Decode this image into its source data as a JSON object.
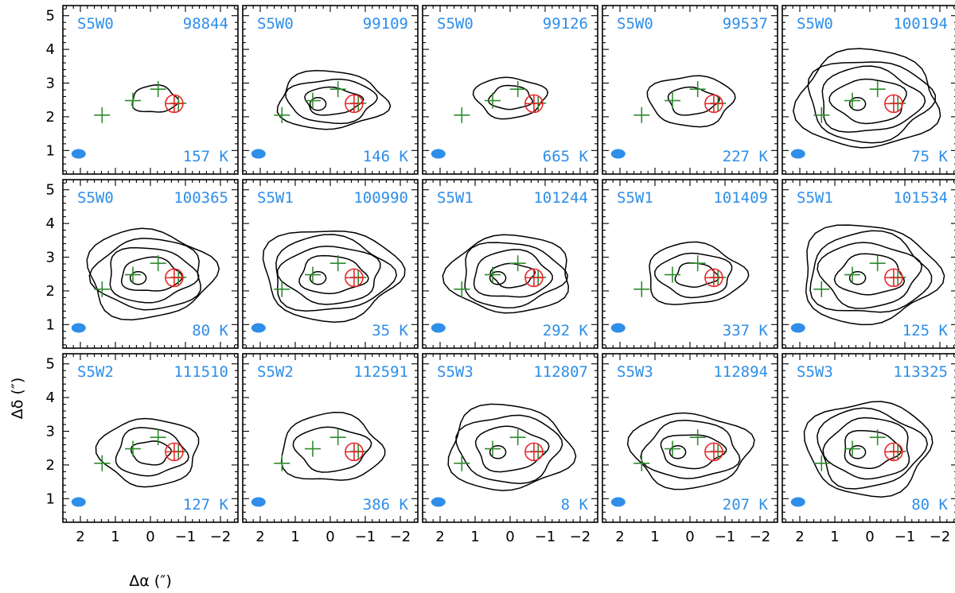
{
  "chart_data": {
    "type": "contour-map-grid",
    "rows": 3,
    "cols": 5,
    "xlabel": "Δα (″)",
    "ylabel": "Δδ (″)",
    "xlim": [
      2.5,
      -2.5
    ],
    "ylim": [
      0.3,
      5.3
    ],
    "xticks": [
      2,
      1,
      0,
      -1,
      -2
    ],
    "xtick_labels": [
      "2",
      "1",
      "0",
      "−1",
      "−2"
    ],
    "yticks": [
      1,
      2,
      3,
      4,
      5
    ],
    "ytick_labels": [
      "1",
      "2",
      "3",
      "4",
      "5"
    ],
    "green_crosses": [
      [
        1.38,
        2.05
      ],
      [
        0.5,
        2.48
      ],
      [
        -0.22,
        2.82
      ],
      [
        -0.8,
        2.4
      ]
    ],
    "red_target": [
      -0.68,
      2.39
    ],
    "beam_center": [
      2.05,
      0.9
    ],
    "panels": [
      {
        "window": "S5W0",
        "freq": "98844",
        "peak": "157 K"
      },
      {
        "window": "S5W0",
        "freq": "99109",
        "peak": "146 K"
      },
      {
        "window": "S5W0",
        "freq": "99126",
        "peak": "665 K"
      },
      {
        "window": "S5W0",
        "freq": "99537",
        "peak": "227 K"
      },
      {
        "window": "S5W0",
        "freq": "100194",
        "peak": "75 K"
      },
      {
        "window": "S5W0",
        "freq": "100365",
        "peak": "80 K"
      },
      {
        "window": "S5W1",
        "freq": "100990",
        "peak": "35 K"
      },
      {
        "window": "S5W1",
        "freq": "101244",
        "peak": "292 K"
      },
      {
        "window": "S5W1",
        "freq": "101409",
        "peak": "337 K"
      },
      {
        "window": "S5W1",
        "freq": "101534",
        "peak": "125 K"
      },
      {
        "window": "S5W2",
        "freq": "111510",
        "peak": "127 K"
      },
      {
        "window": "S5W2",
        "freq": "112591",
        "peak": "386 K"
      },
      {
        "window": "S5W3",
        "freq": "112807",
        "peak": "8 K"
      },
      {
        "window": "S5W3",
        "freq": "112894",
        "peak": "207 K"
      },
      {
        "window": "S5W3",
        "freq": "113325",
        "peak": "80 K"
      }
    ],
    "contour_extents": [
      {
        "cx": -0.15,
        "cy": 2.5,
        "rx": [
          0.65
        ],
        "ry": [
          0.4
        ],
        "hole": false
      },
      {
        "cx": -0.1,
        "cy": 2.45,
        "rx": [
          1.55,
          1.25,
          0.8
        ],
        "ry": [
          0.85,
          0.65,
          0.4
        ],
        "hole": true
      },
      {
        "cx": -0.05,
        "cy": 2.55,
        "rx": [
          1.0,
          0.6
        ],
        "ry": [
          0.6,
          0.35
        ],
        "hole": false
      },
      {
        "cx": -0.1,
        "cy": 2.45,
        "rx": [
          1.2,
          0.7
        ],
        "ry": [
          0.75,
          0.4
        ],
        "hole": false
      },
      {
        "cx": -0.05,
        "cy": 2.45,
        "rx": [
          2.0,
          1.75,
          1.45,
          1.05
        ],
        "ry": [
          1.45,
          1.2,
          0.95,
          0.65
        ],
        "hole": true
      },
      {
        "cx": -0.05,
        "cy": 2.45,
        "rx": [
          1.8,
          1.55,
          1.25,
          0.85
        ],
        "ry": [
          1.3,
          1.05,
          0.8,
          0.5
        ],
        "hole": true
      },
      {
        "cx": -0.1,
        "cy": 2.45,
        "rx": [
          1.95,
          1.7,
          1.4,
          0.95
        ],
        "ry": [
          1.35,
          1.1,
          0.85,
          0.55
        ],
        "hole": true
      },
      {
        "cx": -0.1,
        "cy": 2.45,
        "rx": [
          1.75,
          1.45,
          1.1,
          0.6
        ],
        "ry": [
          1.15,
          0.95,
          0.7,
          0.35
        ],
        "hole": true
      },
      {
        "cx": -0.2,
        "cy": 2.45,
        "rx": [
          1.4,
          1.05,
          0.6
        ],
        "ry": [
          0.9,
          0.65,
          0.35
        ],
        "hole": false
      },
      {
        "cx": -0.05,
        "cy": 2.45,
        "rx": [
          1.95,
          1.7,
          1.4,
          0.95
        ],
        "ry": [
          1.45,
          1.2,
          0.95,
          0.6
        ],
        "hole": true
      },
      {
        "cx": -0.05,
        "cy": 2.35,
        "rx": [
          1.4,
          1.0,
          0.55
        ],
        "ry": [
          1.0,
          0.7,
          0.35
        ],
        "hole": false
      },
      {
        "cx": -0.1,
        "cy": 2.45,
        "rx": [
          1.45,
          1.05
        ],
        "ry": [
          1.0,
          0.65
        ],
        "hole": false
      },
      {
        "cx": -0.05,
        "cy": 2.45,
        "rx": [
          1.75,
          1.45,
          1.0
        ],
        "ry": [
          1.25,
          1.0,
          0.65
        ],
        "hole": true
      },
      {
        "cx": -0.1,
        "cy": 2.4,
        "rx": [
          1.7,
          1.35,
          0.9
        ],
        "ry": [
          1.1,
          0.85,
          0.5
        ],
        "hole": true
      },
      {
        "cx": -0.05,
        "cy": 2.45,
        "rx": [
          1.75,
          1.5,
          1.2,
          0.8
        ],
        "ry": [
          1.4,
          1.15,
          0.9,
          0.55
        ],
        "hole": true
      }
    ]
  }
}
